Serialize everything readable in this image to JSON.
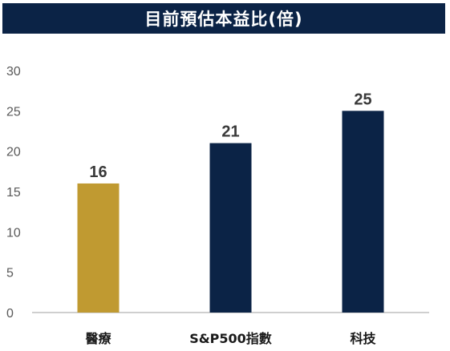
{
  "chart_data": {
    "type": "bar",
    "title": "目前預估本益比(倍)",
    "categories": [
      "醫療",
      "S&P500指數",
      "科技"
    ],
    "values": [
      16,
      21,
      25
    ],
    "data_labels": [
      "16",
      "21",
      "25"
    ],
    "colors": [
      "#c09a31",
      "#0b2346",
      "#0b2346"
    ],
    "ylim": [
      0,
      30
    ],
    "yticks": [
      0,
      5,
      10,
      15,
      20,
      25,
      30
    ],
    "grid": false,
    "xlabel": "",
    "ylabel": ""
  },
  "colors": {
    "title_bg": "#0b2346",
    "title_text": "#ffffff",
    "axis": "#bfbfbf"
  }
}
